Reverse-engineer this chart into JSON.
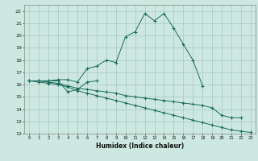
{
  "xlabel": "Humidex (Indice chaleur)",
  "bg_color": "#cce8e0",
  "grid_color": "#aac8c0",
  "line_color": "#1a6b5a",
  "xlim": [
    -0.5,
    23.5
  ],
  "ylim": [
    12,
    22.5
  ],
  "yticks": [
    12,
    13,
    14,
    15,
    16,
    17,
    18,
    19,
    20,
    21,
    22
  ],
  "xticks": [
    0,
    1,
    2,
    3,
    4,
    5,
    6,
    7,
    8,
    9,
    10,
    11,
    12,
    13,
    14,
    15,
    16,
    17,
    18,
    19,
    20,
    21,
    22,
    23
  ],
  "lines": [
    {
      "x": [
        0,
        1,
        2,
        3,
        4,
        5,
        6,
        7,
        8,
        9,
        10,
        11,
        12,
        13,
        14,
        15,
        16,
        17,
        18
      ],
      "y": [
        16.3,
        16.3,
        16.3,
        16.4,
        16.4,
        16.2,
        17.3,
        17.5,
        18.0,
        17.8,
        19.9,
        20.3,
        21.8,
        21.2,
        21.8,
        20.6,
        19.3,
        18.0,
        15.9
      ]
    },
    {
      "x": [
        0,
        1,
        2,
        3,
        4,
        5,
        6,
        7
      ],
      "y": [
        16.3,
        16.3,
        16.3,
        16.3,
        15.4,
        15.6,
        16.2,
        16.3
      ]
    },
    {
      "x": [
        0,
        1,
        2,
        3,
        4,
        5,
        6,
        7,
        8,
        9,
        10,
        11,
        12,
        13,
        14,
        15,
        16,
        17,
        18,
        19,
        20,
        21,
        22
      ],
      "y": [
        16.3,
        16.3,
        16.2,
        16.1,
        15.9,
        15.7,
        15.6,
        15.5,
        15.4,
        15.3,
        15.1,
        15.0,
        14.9,
        14.8,
        14.7,
        14.6,
        14.5,
        14.4,
        14.3,
        14.1,
        13.5,
        13.3,
        13.3
      ]
    },
    {
      "x": [
        0,
        1,
        2,
        3,
        4,
        5,
        6,
        7,
        8,
        9,
        10,
        11,
        12,
        13,
        14,
        15,
        16,
        17,
        18,
        19,
        20,
        21,
        22,
        23
      ],
      "y": [
        16.3,
        16.2,
        16.1,
        16.0,
        15.8,
        15.5,
        15.3,
        15.1,
        14.9,
        14.7,
        14.5,
        14.3,
        14.1,
        13.9,
        13.7,
        13.5,
        13.3,
        13.1,
        12.9,
        12.7,
        12.5,
        12.3,
        12.2,
        12.1
      ]
    }
  ]
}
